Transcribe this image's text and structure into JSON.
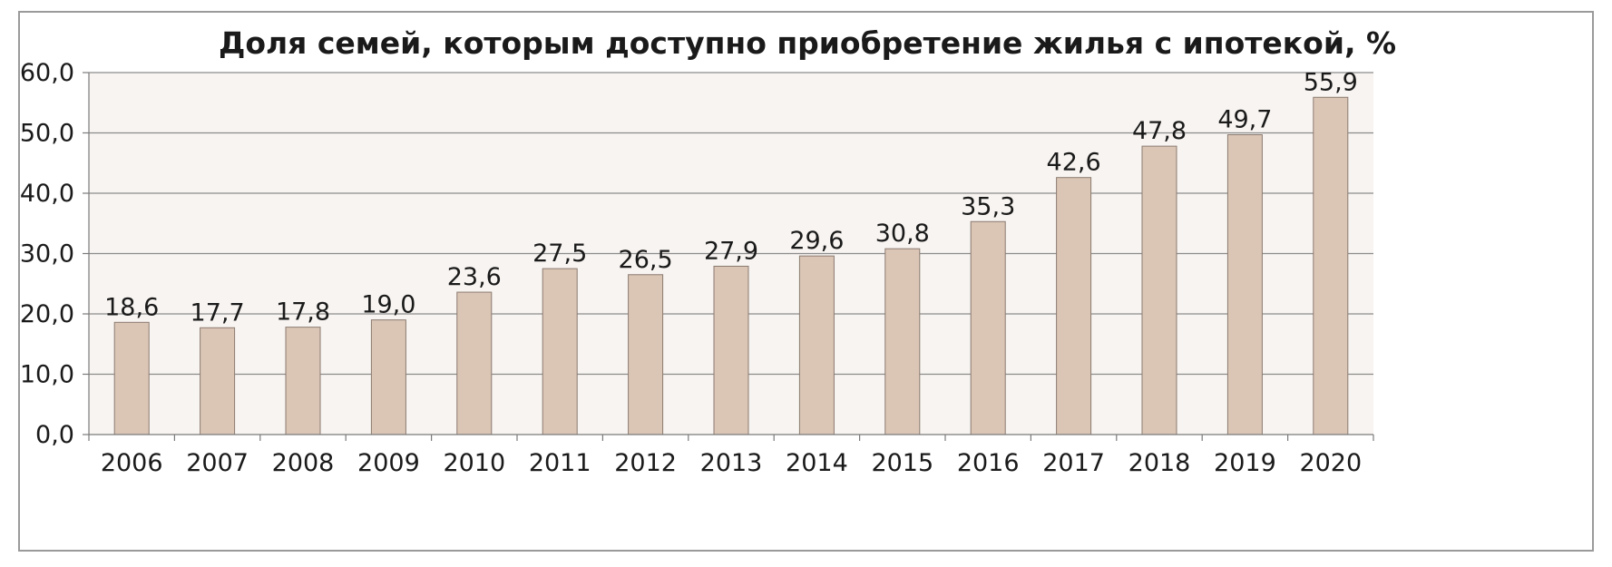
{
  "chart_data": {
    "type": "bar",
    "title": "Доля семей, которым доступно приобретение жилья с ипотекой, %",
    "categories": [
      "2006",
      "2007",
      "2008",
      "2009",
      "2010",
      "2011",
      "2012",
      "2013",
      "2014",
      "2015",
      "2016",
      "2017",
      "2018",
      "2019",
      "2020"
    ],
    "values": [
      18.6,
      17.7,
      17.8,
      19.0,
      23.6,
      27.5,
      26.5,
      27.9,
      29.6,
      30.8,
      35.3,
      42.6,
      47.8,
      49.7,
      55.9
    ],
    "value_labels": [
      "18,6",
      "17,7",
      "17,8",
      "19,0",
      "23,6",
      "27,5",
      "26,5",
      "27,9",
      "29,6",
      "30,8",
      "35,3",
      "42,6",
      "47,8",
      "49,7",
      "55,9"
    ],
    "ylim": [
      0,
      60
    ],
    "y_ticks": [
      0,
      10,
      20,
      30,
      40,
      50,
      60
    ],
    "y_tick_labels": [
      "0,0",
      "10,0",
      "20,0",
      "30,0",
      "40,0",
      "50,0",
      "60,0"
    ],
    "grid": true,
    "colors": {
      "bar_fill": "#dbc6b6",
      "bar_stroke": "#8a7a70",
      "plot_bg": "#f8f4f1",
      "grid": "#8c8c8c"
    }
  }
}
